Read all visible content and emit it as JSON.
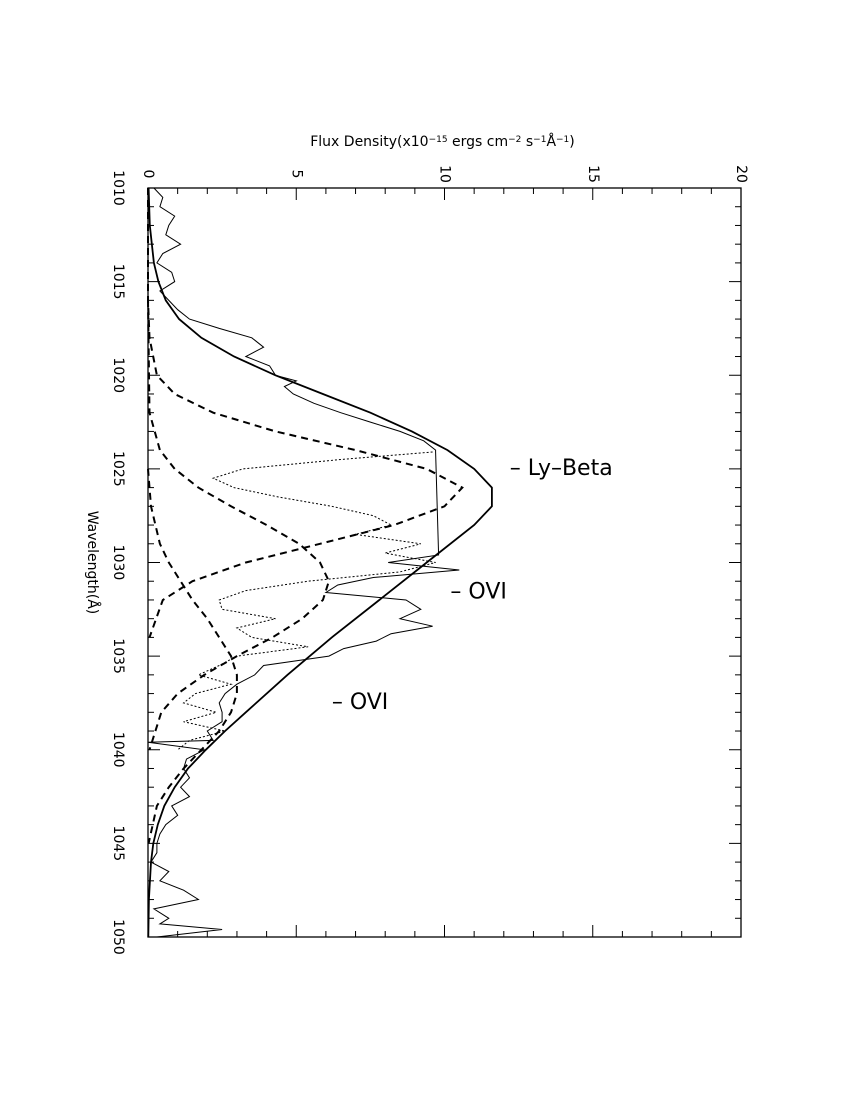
{
  "chart_data": {
    "type": "line",
    "orientation": "rotated: wavelength runs top-to-bottom, flux runs left-to-right",
    "xlabel": "Wavelength(Å)",
    "ylabel_parts": {
      "prefix": "Flux Density(x10",
      "exp1": "−15",
      "mid1": " ergs cm",
      "exp2": "−2",
      "mid2": " s",
      "exp3": "−1",
      "mid3": "Å",
      "exp4": "−1",
      "suffix": ")"
    },
    "xlim": [
      1010,
      1050
    ],
    "ylim": [
      0,
      20
    ],
    "x_ticks": [
      "1010",
      "1015",
      "1020",
      "1025",
      "1030",
      "1035",
      "1040",
      "1045",
      "1050"
    ],
    "y_ticks": [
      "0",
      "5",
      "10",
      "15",
      "20"
    ],
    "grid": false,
    "annotations": [
      {
        "text": "– Ly–Beta",
        "wavelength": 1025.0,
        "flux": 12.2
      },
      {
        "text": "– OVI",
        "wavelength": 1031.6,
        "flux": 10.2
      },
      {
        "text": "– OVI",
        "wavelength": 1037.5,
        "flux": 6.2
      }
    ],
    "series": [
      {
        "style": "solid-thick",
        "x": [
          1010,
          1012,
          1014,
          1015,
          1016,
          1017,
          1018,
          1019,
          1020,
          1021,
          1022,
          1023,
          1024,
          1025,
          1026,
          1027,
          1028,
          1030,
          1032,
          1034,
          1036,
          1038,
          1039,
          1040,
          1041,
          1042,
          1043,
          1044,
          1045,
          1046,
          1048,
          1050
        ],
        "y": [
          0.02,
          0.06,
          0.2,
          0.35,
          0.6,
          1.05,
          1.8,
          2.9,
          4.3,
          5.9,
          7.5,
          8.9,
          10.1,
          11.0,
          11.6,
          11.6,
          11.0,
          9.4,
          7.8,
          6.2,
          4.7,
          3.3,
          2.6,
          1.95,
          1.35,
          0.9,
          0.55,
          0.33,
          0.18,
          0.1,
          0.03,
          0.01
        ]
      },
      {
        "style": "dashed",
        "x": [
          1010,
          1016,
          1018,
          1020,
          1021,
          1022,
          1023,
          1024,
          1025,
          1026,
          1027,
          1028,
          1029,
          1030,
          1031,
          1032,
          1034
        ],
        "y": [
          0,
          0,
          0.05,
          0.3,
          0.9,
          2.2,
          4.3,
          7.0,
          9.4,
          10.6,
          10.0,
          8.3,
          5.8,
          3.3,
          1.5,
          0.5,
          0.05
        ]
      },
      {
        "style": "dashed",
        "x": [
          1016,
          1022,
          1024,
          1025,
          1026,
          1027,
          1028,
          1029,
          1030,
          1031,
          1032,
          1033,
          1034,
          1035,
          1036,
          1037,
          1038,
          1040
        ],
        "y": [
          0,
          0.05,
          0.4,
          0.9,
          1.7,
          2.8,
          4.0,
          5.1,
          5.8,
          6.1,
          5.9,
          5.2,
          4.2,
          3.0,
          1.9,
          1.0,
          0.45,
          0.05
        ]
      },
      {
        "style": "dashed",
        "x": [
          1025,
          1027,
          1029,
          1030,
          1031,
          1032,
          1033,
          1034,
          1035,
          1036,
          1037,
          1038,
          1039,
          1040,
          1041,
          1042,
          1043,
          1045
        ],
        "y": [
          0,
          0.1,
          0.4,
          0.7,
          1.1,
          1.5,
          2.0,
          2.4,
          2.8,
          3.0,
          3.0,
          2.8,
          2.4,
          1.8,
          1.2,
          0.7,
          0.3,
          0.02
        ]
      },
      {
        "style": "dotted",
        "x": [
          1024.1,
          1024.5,
          1025,
          1025.5,
          1026,
          1026.5,
          1027,
          1027.5,
          1028,
          1028.5,
          1029,
          1029.5,
          1030,
          1030.5,
          1031,
          1031.5,
          1032,
          1032.5,
          1033,
          1033.5,
          1034,
          1034.5,
          1035,
          1035.5,
          1036,
          1036.5,
          1037,
          1037.5,
          1038,
          1038.5,
          1039,
          1039.5,
          1040
        ],
        "y": [
          9.6,
          6.5,
          3.2,
          2.2,
          2.9,
          4.4,
          6.2,
          7.6,
          8.2,
          7.0,
          9.2,
          8.0,
          9.7,
          8.5,
          5.4,
          3.3,
          2.4,
          2.5,
          4.3,
          3.0,
          3.5,
          5.4,
          3.0,
          2.4,
          1.7,
          2.8,
          1.6,
          1.2,
          2.3,
          1.2,
          2.6,
          1.4,
          1.0
        ]
      },
      {
        "style": "solid-thin",
        "x": [
          1010,
          1010.5,
          1011,
          1011.5,
          1012,
          1012.5,
          1013,
          1013.5,
          1014,
          1014.5,
          1015,
          1015.5,
          1016,
          1016.5,
          1017,
          1017.5,
          1018,
          1018.5,
          1019,
          1019.5,
          1020,
          1020.3,
          1020.6,
          1021,
          1021.5,
          1022,
          1022.5,
          1023,
          1023.5,
          1024,
          1024.1,
          1029.6,
          1030,
          1030.4,
          1030.8,
          1031.2,
          1031.6,
          1032,
          1032.5,
          1033,
          1033.4,
          1033.8,
          1034.2,
          1034.6,
          1035,
          1035.5,
          1036,
          1036.5,
          1037,
          1037.5,
          1038,
          1038.5,
          1039,
          1039.5,
          1039.6,
          1040,
          1040.5,
          1041,
          1041.5,
          1042,
          1042.5,
          1043,
          1043.5,
          1044,
          1044.5,
          1045,
          1045.5,
          1046,
          1046.5,
          1047,
          1047.5,
          1048,
          1048.5,
          1049,
          1049.3,
          1049.6,
          1050
        ],
        "y": [
          0.2,
          0.5,
          0.4,
          0.9,
          0.7,
          0.6,
          1.1,
          0.5,
          0.3,
          0.8,
          0.9,
          0.4,
          0.7,
          1.0,
          1.4,
          2.4,
          3.5,
          3.9,
          3.3,
          4.1,
          4.3,
          5.0,
          4.6,
          4.9,
          5.6,
          6.5,
          7.5,
          8.5,
          9.3,
          9.7,
          9.7,
          9.8,
          8.1,
          10.5,
          7.6,
          6.4,
          6.0,
          8.7,
          9.2,
          8.5,
          9.6,
          8.2,
          7.7,
          6.6,
          6.1,
          3.9,
          3.6,
          3.0,
          2.6,
          2.4,
          2.5,
          2.5,
          2.0,
          2.2,
          0.0,
          1.9,
          1.3,
          1.2,
          1.4,
          1.1,
          1.4,
          0.8,
          1.0,
          0.6,
          0.4,
          0.3,
          0.3,
          0.1,
          0.7,
          0.4,
          1.2,
          1.7,
          0.2,
          0.7,
          0.4,
          2.5,
          0.3
        ]
      }
    ]
  }
}
